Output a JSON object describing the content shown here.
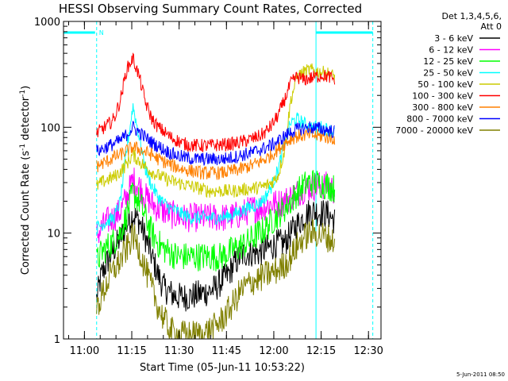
{
  "chart_data": {
    "type": "line",
    "title": "HESSI Observing Summary Count Rates, Corrected",
    "xlabel": "Start Time (05-Jun-11 10:53:22)",
    "ylabel_main": "Corrected Count Rate (s",
    "ylabel_sup1": "-1",
    "ylabel_mid": " detector",
    "ylabel_sup2": "-1",
    "ylabel_end": ")",
    "yscale": "log",
    "ylim": [
      1,
      1000
    ],
    "xlim": [
      "10:53:22",
      "12:34:00"
    ],
    "x_ticks": [
      "11:00",
      "11:15",
      "11:30",
      "11:45",
      "12:00",
      "12:15",
      "12:30"
    ],
    "y_ticks": [
      "1",
      "10",
      "100",
      "1000"
    ],
    "legend_header": [
      "Det 1,3,4,5,6,",
      "Att 0"
    ],
    "legend_position": "top-right, outside plot",
    "grid": false,
    "x_minutes": [
      0,
      10,
      12,
      14,
      16,
      18,
      20,
      22,
      24,
      26,
      28,
      30,
      32,
      34,
      36,
      38,
      40,
      42,
      44,
      46,
      48,
      50,
      52,
      54,
      56,
      58,
      60,
      62,
      64,
      66,
      68,
      70,
      72,
      74,
      76,
      78,
      80,
      82,
      84,
      86
    ],
    "series": [
      {
        "name": "3 - 6 keV",
        "color": "#000000",
        "start_min": 10.5,
        "values": [
          null,
          2,
          4,
          5.5,
          7,
          9,
          12,
          15,
          13,
          9,
          6,
          4,
          3,
          2.7,
          2.5,
          2.5,
          2.5,
          2.6,
          2.7,
          2.8,
          3,
          3.5,
          4,
          5,
          6,
          6.5,
          6.5,
          6.5,
          7,
          7.5,
          8,
          8,
          10,
          12,
          14,
          16,
          16,
          15.5,
          15,
          13
        ]
      },
      {
        "name": "6 - 12 keV",
        "color": "#ff00ff",
        "start_min": 10.5,
        "values": [
          null,
          9,
          11,
          13,
          14,
          16,
          22,
          32,
          28,
          22,
          19,
          17,
          16,
          15,
          14.5,
          14,
          14,
          14,
          14,
          14,
          14,
          14,
          14,
          14.5,
          15,
          16,
          17,
          17,
          18,
          19,
          19,
          20,
          22,
          24,
          26,
          27,
          28,
          28,
          28,
          25
        ]
      },
      {
        "name": "12 - 25 keV",
        "color": "#00ff00",
        "start_min": 10.5,
        "values": [
          null,
          5,
          6.5,
          7.5,
          8.5,
          10,
          15,
          24,
          20,
          14,
          10,
          8,
          7,
          6.5,
          6,
          6,
          6,
          6,
          6,
          6,
          6,
          6,
          6.5,
          7,
          7.5,
          8,
          9,
          10,
          11,
          13,
          15,
          17,
          20,
          24,
          28,
          30,
          30,
          29,
          28,
          26
        ]
      },
      {
        "name": "25 - 50 keV",
        "color": "#00ffff",
        "start_min": 10.5,
        "values": [
          null,
          11,
          12,
          13,
          14,
          20,
          60,
          160,
          80,
          40,
          28,
          22,
          19,
          17,
          16,
          15,
          14,
          14,
          14,
          14,
          14,
          14,
          14.5,
          15,
          16,
          17,
          18,
          19,
          22,
          28,
          40,
          70,
          110,
          120,
          110,
          100,
          100,
          100,
          95,
          90
        ]
      },
      {
        "name": "50 - 100 keV",
        "color": "#cccc00",
        "start_min": 10.5,
        "values": [
          null,
          27,
          30,
          32,
          34,
          38,
          45,
          55,
          48,
          42,
          38,
          35,
          33,
          31,
          30,
          29,
          28,
          27,
          26,
          25,
          25,
          25,
          25,
          25,
          25.5,
          26,
          26.5,
          27,
          28,
          30,
          35,
          60,
          180,
          300,
          330,
          350,
          340,
          330,
          320,
          300
        ]
      },
      {
        "name": "100 - 300 keV",
        "color": "#ff0000",
        "start_min": 10.5,
        "values": [
          null,
          85,
          95,
          105,
          120,
          180,
          350,
          450,
          300,
          170,
          120,
          100,
          90,
          80,
          75,
          70,
          68,
          67,
          67,
          67,
          68,
          68,
          69,
          70,
          72,
          75,
          78,
          82,
          90,
          105,
          130,
          180,
          260,
          300,
          280,
          290,
          300,
          310,
          300,
          280
        ]
      },
      {
        "name": "300 - 800 keV",
        "color": "#ff8000",
        "start_min": 10.5,
        "values": [
          null,
          42,
          45,
          48,
          52,
          55,
          60,
          65,
          62,
          58,
          55,
          50,
          47,
          44,
          42,
          40,
          39,
          38,
          37,
          37,
          37,
          37,
          38,
          39,
          40,
          42,
          44,
          47,
          50,
          55,
          62,
          70,
          78,
          82,
          84,
          85,
          83,
          82,
          80,
          78
        ]
      },
      {
        "name": "800 - 7000 keV",
        "color": "#0000ff",
        "start_min": 10.5,
        "values": [
          null,
          58,
          62,
          66,
          70,
          75,
          85,
          100,
          90,
          80,
          72,
          66,
          61,
          57,
          54,
          52,
          51,
          50,
          50,
          50,
          50,
          50,
          51,
          52,
          54,
          56,
          58,
          61,
          64,
          68,
          74,
          82,
          90,
          95,
          98,
          100,
          98,
          96,
          94,
          90
        ]
      },
      {
        "name": "7000 - 20000 keV",
        "color": "#808000",
        "start_min": 10.5,
        "values": [
          null,
          1.8,
          2.5,
          3.5,
          4.5,
          5.5,
          7,
          9.5,
          7,
          4.5,
          3,
          2,
          1.5,
          1.2,
          1.1,
          1.1,
          1.1,
          1.1,
          1.1,
          1.2,
          1.3,
          1.5,
          1.8,
          2.2,
          2.8,
          3.2,
          3.5,
          3.7,
          4,
          4.2,
          4.5,
          5,
          6,
          7.5,
          9,
          10,
          10,
          9.5,
          9,
          8
        ]
      }
    ],
    "legend_labels": [
      "3 - 6 keV",
      "6 - 12 keV",
      "12 - 25 keV",
      "25 - 50 keV",
      "50 - 100 keV",
      "100 - 300 keV",
      "300 - 800 keV",
      "800 - 7000 keV",
      "7000 - 20000 keV"
    ],
    "legend_colors": [
      "#000000",
      "#ff00ff",
      "#00ff00",
      "#00ffff",
      "#cccc00",
      "#ff0000",
      "#ff8000",
      "#0000ff",
      "#808000"
    ],
    "orbit_markers": {
      "color": "#00ffff",
      "night_bar_1_minutes": [
        0,
        10
      ],
      "night_bar_2_minutes": [
        80,
        98
      ],
      "solid_vertical_minutes": [
        0,
        80
      ],
      "dashed_vertical_minutes": [
        10.5,
        98
      ],
      "marker_label": "N",
      "marker_label_minute": 10.5
    },
    "footer": "5-Jun-2011 08:50"
  }
}
